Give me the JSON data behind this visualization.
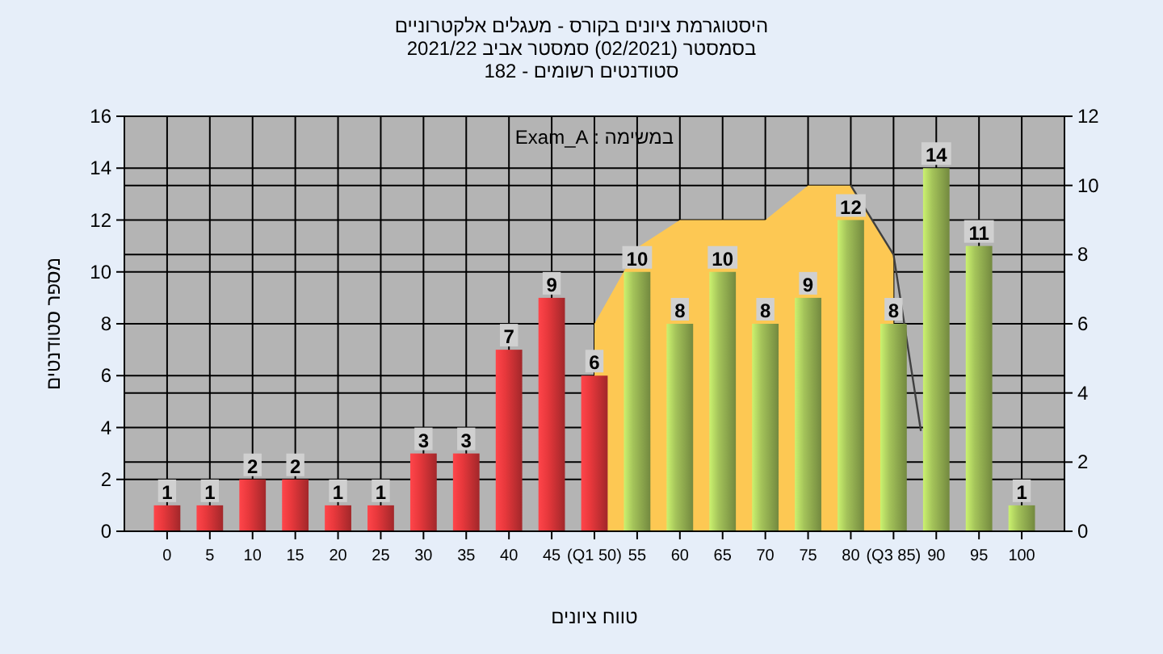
{
  "chart_data": {
    "type": "bar",
    "title": "היסטוגרמת ציונים בקורס - מעגלים אלקטרוניים",
    "subtitle": "בסמסטר  (02/2021)  סמסטר אביב 2021/22\nסטודנטים רשומים - 182",
    "xlabel": "טווח ציונים",
    "ylabel": "מספר סטודנטים",
    "annotations": [
      "במשימה : Exam_A"
    ],
    "x": [
      0,
      5,
      10,
      15,
      20,
      25,
      30,
      35,
      40,
      45,
      50,
      55,
      60,
      65,
      70,
      75,
      80,
      85,
      90,
      95,
      100
    ],
    "xlim": [
      -5,
      105
    ],
    "xticks": [
      0,
      5,
      10,
      15,
      20,
      25,
      30,
      35,
      40,
      45,
      {
        "value": 50,
        "label": "(Q1 50)"
      },
      55,
      60,
      65,
      70,
      75,
      80,
      {
        "value": 85,
        "label": "(Q3 85)"
      },
      90,
      95,
      100
    ],
    "ylim": [
      0,
      16
    ],
    "yticks": [
      0,
      2,
      4,
      6,
      8,
      10,
      12,
      14,
      16
    ],
    "y2lim": [
      0,
      12
    ],
    "y2ticks": [
      0,
      2,
      4,
      6,
      8,
      10,
      12
    ],
    "series": [
      {
        "type": "area",
        "axis": "y2",
        "color": "#fdc853",
        "x": [
          50,
          55,
          60,
          70,
          75,
          80,
          85
        ],
        "values": [
          6,
          8.2,
          9,
          9,
          10,
          10,
          8
        ]
      },
      {
        "type": "line",
        "axis": "y2",
        "color": "#404040",
        "x": [
          80,
          85,
          88.2
        ],
        "values": [
          10,
          8,
          2.9
        ]
      },
      {
        "values": [
          1,
          1,
          2,
          2,
          1,
          1,
          3,
          3,
          7,
          9,
          6,
          10,
          8,
          10,
          8,
          9,
          12,
          8,
          14,
          11,
          1
        ],
        "value_labels": [
          "1",
          "1",
          "2",
          "2",
          "1",
          "1",
          "3",
          "3",
          "7",
          "9",
          "6",
          "10",
          "8",
          "10",
          "8",
          "9",
          "12",
          "8",
          "14",
          "11",
          "1"
        ],
        "colors": [
          "#e8383c",
          "#e8383c",
          "#e8383c",
          "#e8383c",
          "#e8383c",
          "#e8383c",
          "#e8383c",
          "#e8383c",
          "#e8383c",
          "#e8383c",
          "#e8383c",
          "#a4c35a",
          "#a4c35a",
          "#a4c35a",
          "#a4c35a",
          "#a4c35a",
          "#a4c35a",
          "#a4c35a",
          "#a4c35a",
          "#a4c35a",
          "#a4c35a"
        ]
      }
    ],
    "grid": true
  }
}
